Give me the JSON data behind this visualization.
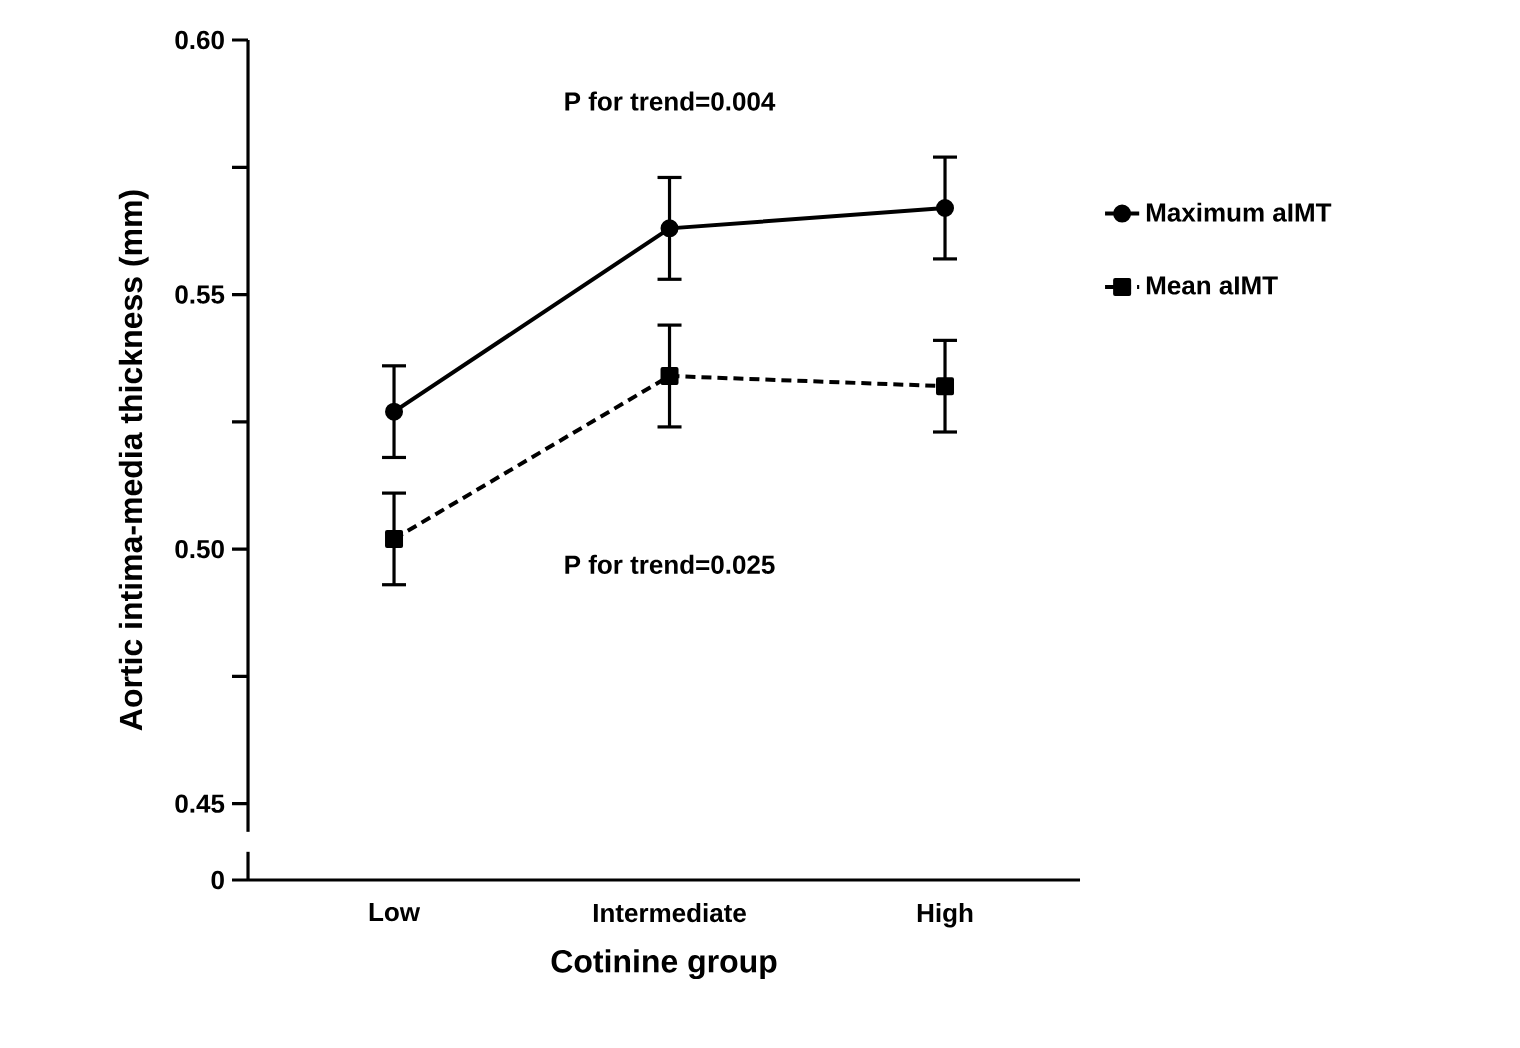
{
  "chart_data": {
    "type": "line",
    "xlabel": "Cotinine group",
    "ylabel": "Aortic intima-media thickness (mm)",
    "categories": [
      "Low",
      "Intermediate",
      "High"
    ],
    "series": [
      {
        "name": "Maximum aIMT",
        "color": "#000000",
        "marker": "circle",
        "line_style": "solid",
        "values": [
          0.527,
          0.563,
          0.567
        ],
        "errors": [
          0.009,
          0.01,
          0.01
        ]
      },
      {
        "name": "Mean aIMT",
        "color": "#000000",
        "marker": "square",
        "line_style": "dashed",
        "values": [
          0.502,
          0.534,
          0.532
        ],
        "errors": [
          0.009,
          0.01,
          0.009
        ]
      }
    ],
    "ylim": [
      0.435,
      0.6
    ],
    "yticks": [
      {
        "value": 0.435,
        "label": "0"
      },
      0.45,
      {
        "value": 0.475,
        "label": null
      },
      {
        "value": 0.5,
        "label": "0.50"
      },
      {
        "value": 0.525,
        "label": null
      },
      0.55,
      {
        "value": 0.575,
        "label": null
      },
      {
        "value": 0.6,
        "label": "0.60"
      }
    ],
    "annotations": [
      "P for trend=0.004",
      "P for trend=0.025"
    ],
    "legend": "right",
    "grid": false
  }
}
